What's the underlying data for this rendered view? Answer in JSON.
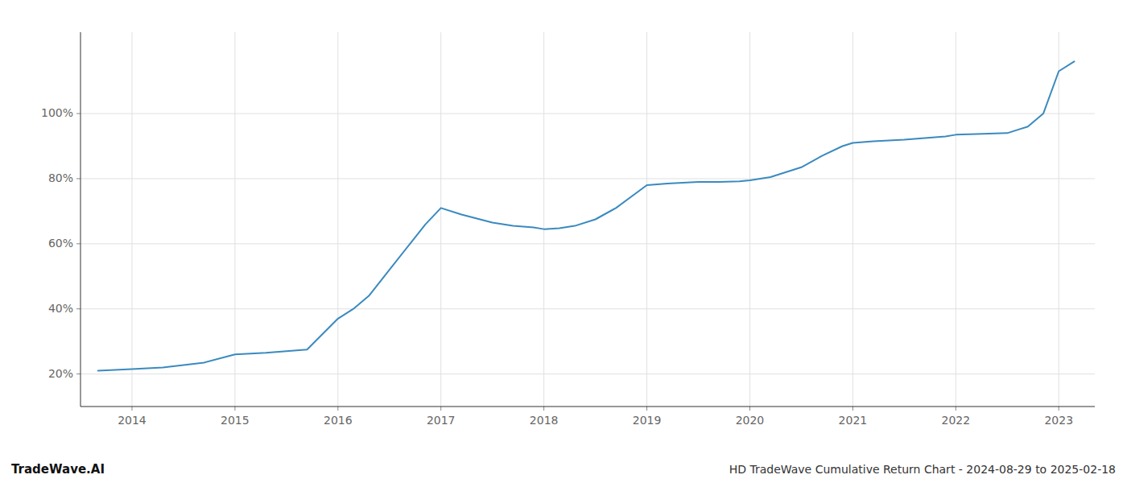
{
  "chart_data": {
    "type": "line",
    "title": "HD TradeWave Cumulative Return Chart - 2024-08-29 to 2025-02-18",
    "annotations": [
      "TradeWave.AI"
    ],
    "x": [
      2013.67,
      2014.0,
      2014.3,
      2014.7,
      2015.0,
      2015.3,
      2015.7,
      2016.0,
      2016.15,
      2016.3,
      2016.5,
      2016.7,
      2016.85,
      2017.0,
      2017.2,
      2017.5,
      2017.7,
      2017.9,
      2018.0,
      2018.15,
      2018.3,
      2018.5,
      2018.7,
      2019.0,
      2019.2,
      2019.5,
      2019.7,
      2019.9,
      2020.0,
      2020.2,
      2020.5,
      2020.7,
      2020.9,
      2021.0,
      2021.2,
      2021.5,
      2021.7,
      2021.9,
      2022.0,
      2022.2,
      2022.5,
      2022.7,
      2022.85,
      2023.0,
      2023.15
    ],
    "values": [
      21.0,
      21.5,
      22.0,
      23.5,
      26.0,
      26.5,
      27.5,
      37.0,
      40.0,
      44.0,
      52.0,
      60.0,
      66.0,
      71.0,
      69.0,
      66.5,
      65.5,
      65.0,
      64.5,
      64.8,
      65.5,
      67.5,
      71.0,
      78.0,
      78.5,
      79.0,
      79.0,
      79.2,
      79.5,
      80.5,
      83.5,
      87.0,
      90.0,
      91.0,
      91.5,
      92.0,
      92.5,
      93.0,
      93.5,
      93.7,
      94.0,
      96.0,
      100.0,
      113.0,
      116.0
    ],
    "color": "#3a8abf",
    "xlim": [
      2013.5,
      2023.35
    ],
    "ylim": [
      10,
      125
    ],
    "xticks": [
      2014,
      2015,
      2016,
      2017,
      2018,
      2019,
      2020,
      2021,
      2022,
      2023
    ],
    "yticks": [
      {
        "value": 20,
        "label": "20%"
      },
      {
        "value": 40,
        "label": "40%"
      },
      {
        "value": 60,
        "label": "60%"
      },
      {
        "value": 80,
        "label": "80%"
      },
      {
        "value": 100,
        "label": "100%"
      }
    ],
    "grid": true
  }
}
